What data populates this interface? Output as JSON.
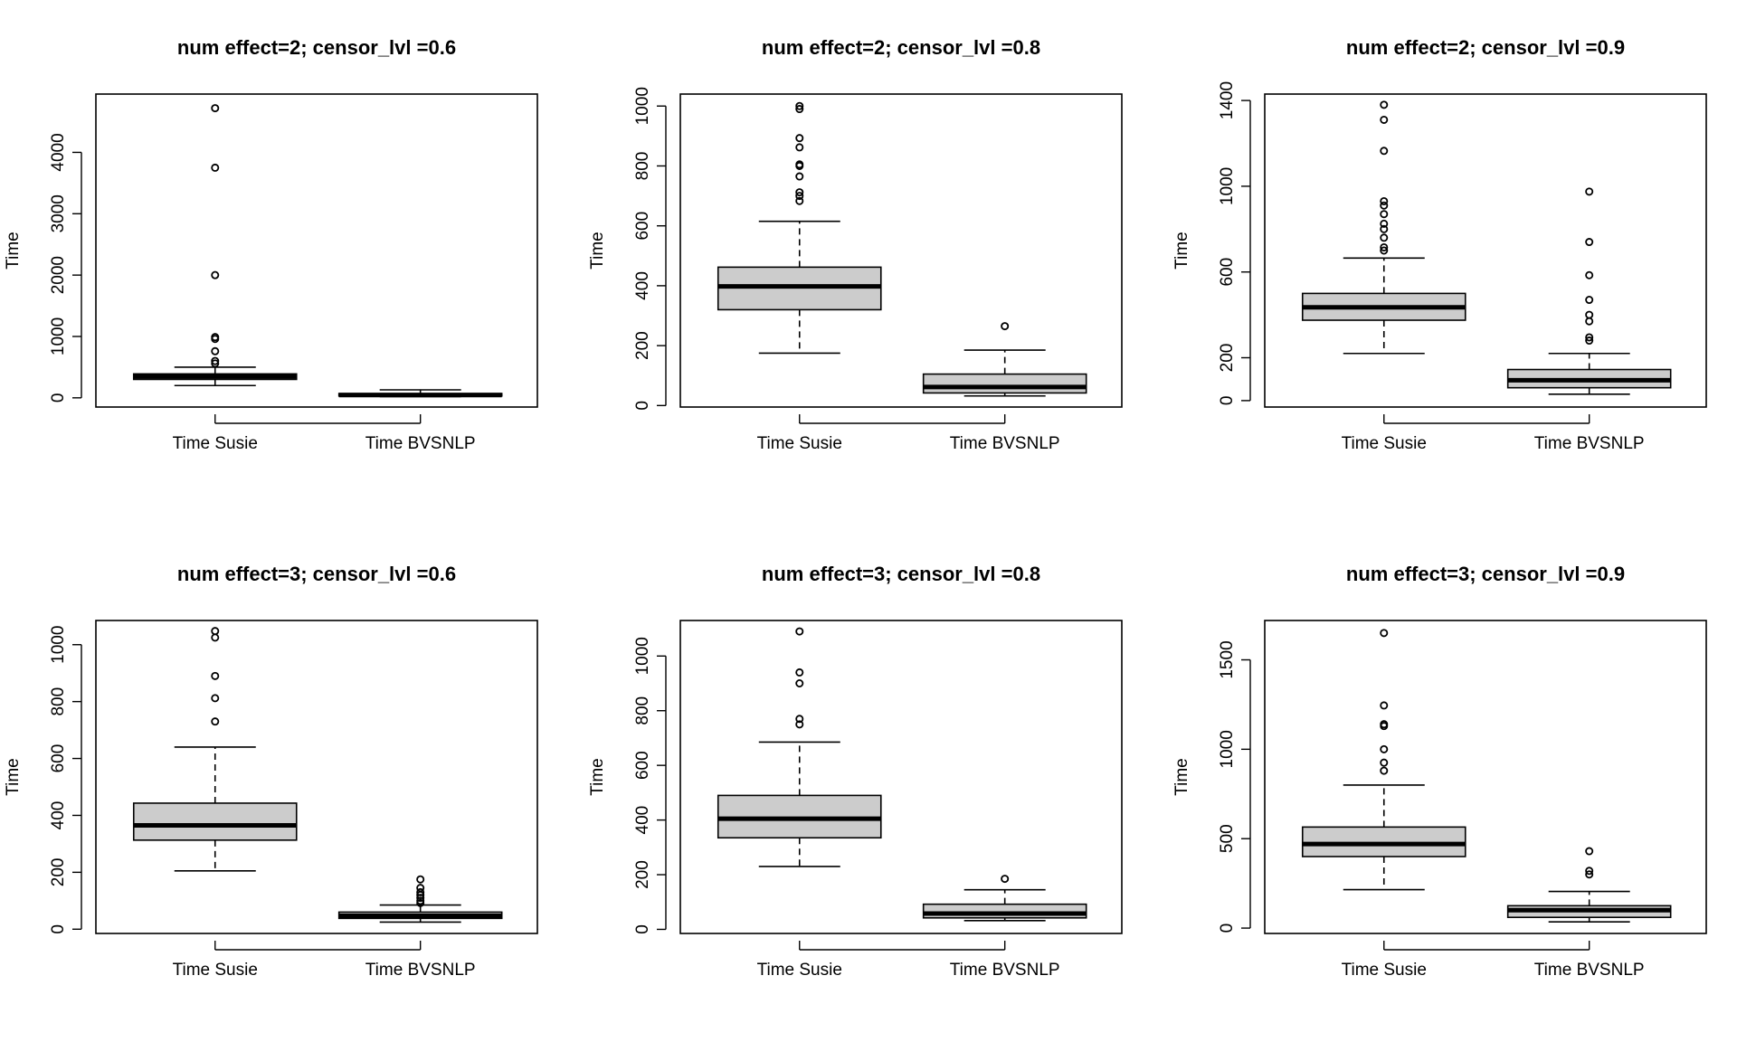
{
  "chart_data": [
    {
      "type": "box",
      "title": "num effect=2; censor_lvl =0.6",
      "ylabel": "Time",
      "ylim": [
        -150,
        4950
      ],
      "yticks": [
        0,
        1000,
        2000,
        3000,
        4000
      ],
      "categories": [
        "Time Susie",
        "Time BVSNLP"
      ],
      "boxes": [
        {
          "name": "Time Susie",
          "min": 200,
          "q1": 300,
          "median": 345,
          "q3": 390,
          "max": 500,
          "outliers": [
            4720,
            3750,
            2000,
            990,
            960,
            760,
            600,
            560
          ]
        },
        {
          "name": "Time BVSNLP",
          "min": 20,
          "q1": 30,
          "median": 45,
          "q3": 70,
          "max": 130,
          "outliers": []
        }
      ]
    },
    {
      "type": "box",
      "title": "num effect=2; censor_lvl =0.8",
      "ylabel": "Time",
      "ylim": [
        -5,
        1040
      ],
      "yticks": [
        0,
        200,
        400,
        600,
        800,
        1000
      ],
      "categories": [
        "Time Susie",
        "Time BVSNLP"
      ],
      "boxes": [
        {
          "name": "Time Susie",
          "min": 175,
          "q1": 320,
          "median": 398,
          "q3": 462,
          "max": 615,
          "outliers": [
            990,
            1000,
            893,
            862,
            805,
            800,
            765,
            712,
            700,
            683
          ]
        },
        {
          "name": "Time BVSNLP",
          "min": 32,
          "q1": 42,
          "median": 62,
          "q3": 105,
          "max": 185,
          "outliers": [
            265
          ]
        }
      ]
    },
    {
      "type": "box",
      "title": "num effect=2; censor_lvl =0.9",
      "ylabel": "Time",
      "ylim": [
        -30,
        1430
      ],
      "yticks": [
        0,
        200,
        600,
        1000,
        1400
      ],
      "categories": [
        "Time Susie",
        "Time BVSNLP"
      ],
      "boxes": [
        {
          "name": "Time Susie",
          "min": 220,
          "q1": 375,
          "median": 435,
          "q3": 500,
          "max": 665,
          "outliers": [
            1380,
            1310,
            1165,
            930,
            910,
            870,
            825,
            800,
            760,
            715,
            700
          ]
        },
        {
          "name": "Time BVSNLP",
          "min": 30,
          "q1": 60,
          "median": 95,
          "q3": 145,
          "max": 220,
          "outliers": [
            975,
            740,
            585,
            470,
            400,
            370,
            295,
            280
          ]
        }
      ]
    },
    {
      "type": "box",
      "title": "num effect=3; censor_lvl =0.6",
      "ylabel": "Time",
      "ylim": [
        -15,
        1085
      ],
      "yticks": [
        0,
        200,
        400,
        600,
        800,
        1000
      ],
      "categories": [
        "Time Susie",
        "Time BVSNLP"
      ],
      "boxes": [
        {
          "name": "Time Susie",
          "min": 205,
          "q1": 313,
          "median": 365,
          "q3": 443,
          "max": 640,
          "outliers": [
            1048,
            1025,
            890,
            812,
            730
          ]
        },
        {
          "name": "Time BVSNLP",
          "min": 25,
          "q1": 38,
          "median": 47,
          "q3": 60,
          "max": 85,
          "outliers": [
            175,
            145,
            130,
            120,
            110,
            100,
            92
          ]
        }
      ]
    },
    {
      "type": "box",
      "title": "num effect=3; censor_lvl =0.8",
      "ylabel": "Time",
      "ylim": [
        -15,
        1130
      ],
      "yticks": [
        0,
        200,
        400,
        600,
        800,
        1000
      ],
      "categories": [
        "Time Susie",
        "Time BVSNLP"
      ],
      "boxes": [
        {
          "name": "Time Susie",
          "min": 230,
          "q1": 335,
          "median": 405,
          "q3": 490,
          "max": 685,
          "outliers": [
            1090,
            940,
            900,
            770,
            750
          ]
        },
        {
          "name": "Time BVSNLP",
          "min": 32,
          "q1": 42,
          "median": 58,
          "q3": 92,
          "max": 145,
          "outliers": [
            185
          ]
        }
      ]
    },
    {
      "type": "box",
      "title": "num effect=3; censor_lvl =0.9",
      "ylabel": "Time",
      "ylim": [
        -30,
        1720
      ],
      "yticks": [
        0,
        500,
        1000,
        1500
      ],
      "categories": [
        "Time Susie",
        "Time BVSNLP"
      ],
      "boxes": [
        {
          "name": "Time Susie",
          "min": 215,
          "q1": 400,
          "median": 470,
          "q3": 565,
          "max": 800,
          "outliers": [
            1650,
            1245,
            1140,
            1130,
            1000,
            925,
            880
          ]
        },
        {
          "name": "Time BVSNLP",
          "min": 35,
          "q1": 60,
          "median": 100,
          "q3": 125,
          "max": 205,
          "outliers": [
            430,
            320,
            300
          ]
        }
      ]
    }
  ]
}
